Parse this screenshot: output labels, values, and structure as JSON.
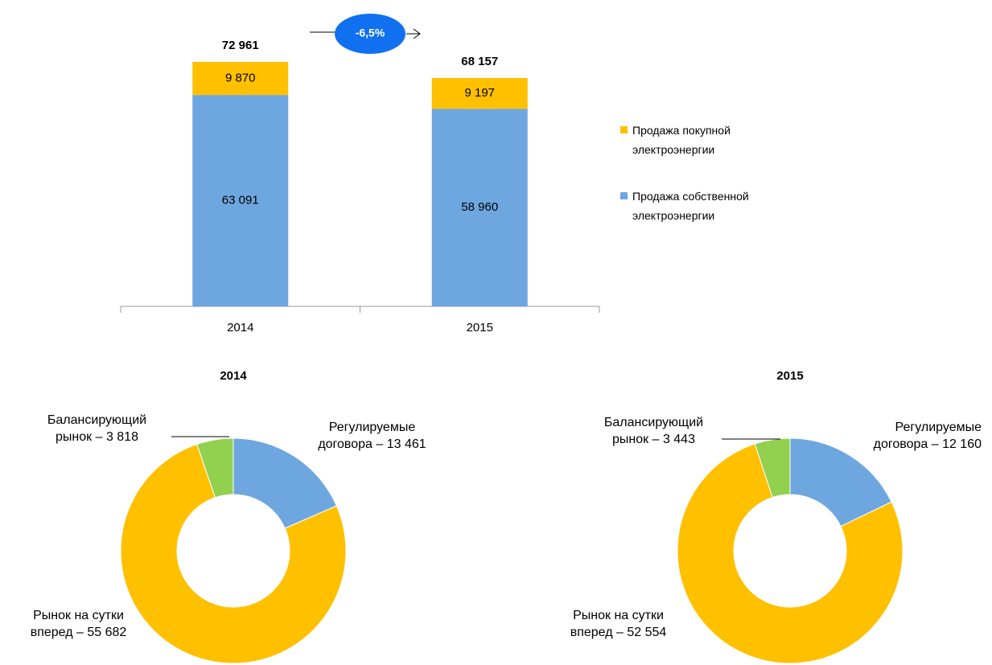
{
  "chart_data": [
    {
      "type": "stacked_bar",
      "categories": [
        "2014",
        "2015"
      ],
      "series": [
        {
          "name": "Продажа собственной электроэнергии",
          "color": "#6ea6e0",
          "values": [
            63091,
            58960
          ],
          "value_labels": [
            "63 091",
            "58 960"
          ]
        },
        {
          "name": "Продажа покупной электроэнергии",
          "color": "#ffc000",
          "values": [
            9870,
            9197
          ],
          "value_labels": [
            "9 870",
            "9 197"
          ]
        }
      ],
      "totals": [
        72961,
        68157
      ],
      "total_labels": [
        "72 961",
        "68 157"
      ],
      "annotation": "-6,5%",
      "legend": "right"
    },
    {
      "type": "donut",
      "title": "2014",
      "labels": [
        "Регулируемые договора – 13 461",
        "Рынок на сутки вперед – 55 682",
        "Балансирующий рынок – 3 818"
      ],
      "values": [
        13461,
        55682,
        3818
      ],
      "colors": [
        "#6ea6e0",
        "#ffc000",
        "#92d050"
      ]
    },
    {
      "type": "donut",
      "title": "2015",
      "labels": [
        "Регулируемые договора – 12 160",
        "Рынок на сутки вперед – 52 554",
        "Балансирующий рынок – 3 443"
      ],
      "values": [
        12160,
        52554,
        3443
      ],
      "colors": [
        "#6ea6e0",
        "#ffc000",
        "#92d050"
      ]
    }
  ]
}
